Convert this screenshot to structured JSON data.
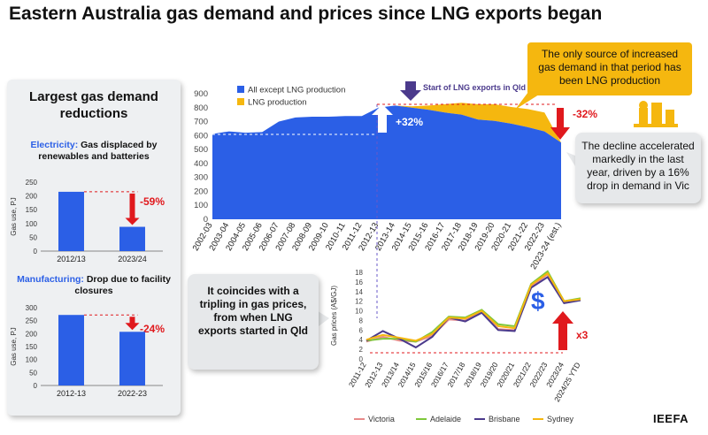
{
  "title": "Eastern Australia gas demand and prices since LNG exports began",
  "left_panel": {
    "title": "Largest gas demand reductions",
    "electricity": {
      "label_prefix": "Electricity:",
      "label_rest": "Gas displaced by renewables and batteries",
      "change": "-59%"
    },
    "manufacturing": {
      "label_prefix": "Manufacturing:",
      "label_rest": "Drop due to facility closures",
      "change": "-24%"
    }
  },
  "callouts": {
    "orange": "The only source of increased gas demand in that period has been LNG production",
    "decline": "The decline accelerated markedly in the last year, driven by a 16% drop in demand in Vic",
    "tripling": "It coincides with a tripling in gas prices, from when LNG exports started in Qld"
  },
  "annotations": {
    "lng_start": "Start of LNG exports in Qld",
    "up32": "+32%",
    "down32": "-32%",
    "x3": "x3",
    "dollar": "$"
  },
  "brand": "IEEFA",
  "colors": {
    "blue": "#2b5fe6",
    "orange": "#f5b70f",
    "red": "#e0191d",
    "navy": "#4b3a8c"
  },
  "chart_data": [
    {
      "type": "bar",
      "title": "Electricity: Gas displaced by renewables and batteries",
      "ylabel": "Gas use, PJ",
      "ylim": [
        0,
        250
      ],
      "yticks": [
        0,
        50,
        100,
        150,
        200,
        250
      ],
      "categories": [
        "2012/13",
        "2023/24"
      ],
      "values": [
        215,
        88
      ]
    },
    {
      "type": "bar",
      "title": "Manufacturing: Drop due to facility closures",
      "ylabel": "Gas use, PJ",
      "ylim": [
        0,
        300
      ],
      "yticks": [
        0,
        50,
        100,
        150,
        200,
        250,
        300
      ],
      "categories": [
        "2012-13",
        "2022-23"
      ],
      "values": [
        272,
        207
      ]
    },
    {
      "type": "area",
      "stacked": true,
      "ylim": [
        0,
        900
      ],
      "yticks": [
        0,
        100,
        200,
        300,
        400,
        500,
        600,
        700,
        800,
        900
      ],
      "legend": "top-left",
      "categories": [
        "2002-03",
        "2003-04",
        "2004-05",
        "2005-06",
        "2006-07",
        "2007-08",
        "2008-09",
        "2009-10",
        "2010-11",
        "2011-12",
        "2012-13",
        "2013-14",
        "2014-15",
        "2015-16",
        "2016-17",
        "2017-18",
        "2018-19",
        "2019-20",
        "2020-21",
        "2021-22",
        "2022-23",
        "2023-24 (est.)"
      ],
      "series": [
        {
          "name": "All except LNG production",
          "values": [
            612,
            630,
            620,
            625,
            700,
            730,
            735,
            735,
            740,
            740,
            800,
            815,
            800,
            785,
            765,
            750,
            715,
            705,
            685,
            660,
            630,
            550
          ]
        },
        {
          "name": "LNG production",
          "values": [
            0,
            0,
            0,
            0,
            0,
            0,
            0,
            0,
            0,
            0,
            0,
            0,
            10,
            30,
            60,
            85,
            110,
            120,
            120,
            130,
            135,
            0
          ]
        }
      ]
    },
    {
      "type": "line",
      "ylabel": "Gas prices (A$/GJ)",
      "ylim": [
        0,
        18
      ],
      "yticks": [
        0,
        2,
        4,
        6,
        8,
        10,
        12,
        14,
        16,
        18
      ],
      "legend": "bottom",
      "categories": [
        "2011-12",
        "2012-13",
        "2013/14",
        "2014/15",
        "2015/16",
        "2016/17",
        "2017/18",
        "2018/19",
        "2019/20",
        "2020/21",
        "2021/22",
        "2022/23",
        "2023/24",
        "2024/25 YTD"
      ],
      "series": [
        {
          "name": "Victoria",
          "color": "#e88a8a",
          "values": [
            3.6,
            4.6,
            3.8,
            3.6,
            4.8,
            8.2,
            8.0,
            9.8,
            6.2,
            6.0,
            15.0,
            17.6,
            11.8,
            12.4
          ]
        },
        {
          "name": "Adelaide",
          "color": "#7ec83a",
          "values": [
            3.8,
            4.2,
            4.2,
            3.6,
            5.6,
            8.8,
            8.6,
            10.2,
            7.2,
            6.8,
            15.6,
            18.2,
            12.0,
            12.6
          ]
        },
        {
          "name": "Brisbane",
          "color": "#4b3a8c",
          "values": [
            3.8,
            5.8,
            4.2,
            2.4,
            4.6,
            8.6,
            7.8,
            9.6,
            6.0,
            5.8,
            14.8,
            17.0,
            11.6,
            12.2
          ]
        },
        {
          "name": "Sydney",
          "color": "#f5b70f",
          "values": [
            4.0,
            5.0,
            4.4,
            3.8,
            5.2,
            8.6,
            8.4,
            10.0,
            6.8,
            6.4,
            15.4,
            17.8,
            12.0,
            12.4
          ]
        }
      ]
    }
  ]
}
